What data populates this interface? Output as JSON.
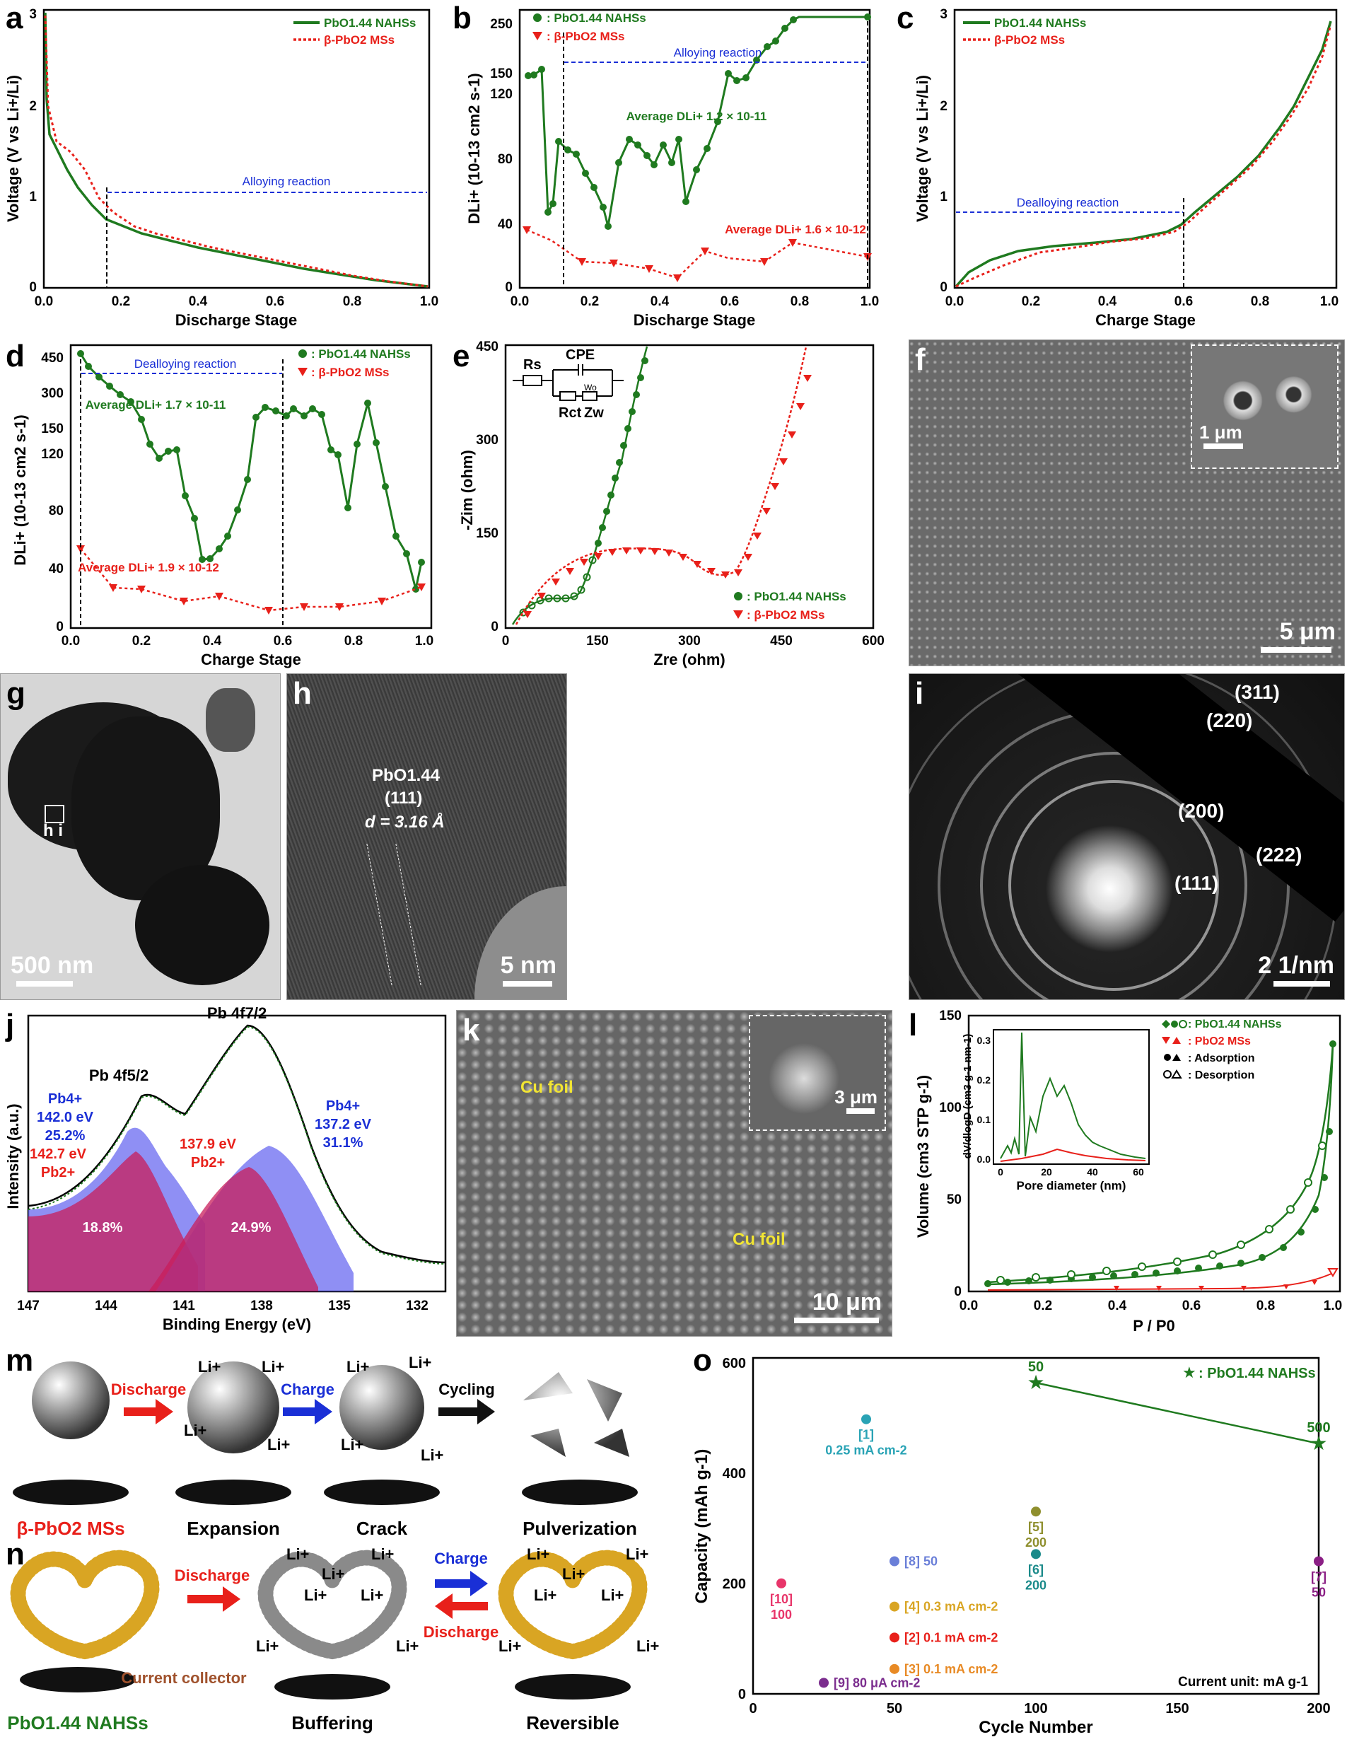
{
  "labels": {
    "a": "a",
    "b": "b",
    "c": "c",
    "d": "d",
    "e": "e",
    "f": "f",
    "g": "g",
    "h": "h",
    "i": "i",
    "j": "j",
    "k": "k",
    "l": "l",
    "m": "m",
    "n": "n",
    "o": "o"
  },
  "legend": {
    "nahss": "PbO1.44 NAHSs",
    "ms": "β-PbO2 MSs",
    "nahss_colon": ": PbO1.44 NAHSs",
    "ms_colon": ": β-PbO2 MSs"
  },
  "colors": {
    "green": "#1f7a1f",
    "red": "#e8201a",
    "blue": "#1a2fd6",
    "purple": "#6a6af0"
  },
  "panel_a": {
    "xlabel": "Discharge Stage",
    "ylabel": "Voltage (V vs Li+/Li)",
    "annotation": "Alloying reaction",
    "xticks": [
      "0.0",
      "0.2",
      "0.4",
      "0.6",
      "0.8",
      "1.0"
    ],
    "yticks": [
      "0",
      "1",
      "2",
      "3"
    ]
  },
  "panel_b": {
    "xlabel": "Discharge Stage",
    "ylabel": "DLi+ (10-13 cm2 s-1)",
    "annotation": "Alloying reaction",
    "avg_green": "Average DLi+ 1.2 × 10-11",
    "avg_red": "Average DLi+ 1.6 × 10-12",
    "xticks": [
      "0.0",
      "0.2",
      "0.4",
      "0.6",
      "0.8",
      "1.0"
    ],
    "yticks": [
      "0",
      "40",
      "80",
      "120",
      "150",
      "250"
    ]
  },
  "panel_c": {
    "xlabel": "Charge Stage",
    "ylabel": "Voltage (V vs Li+/Li)",
    "annotation": "Dealloying reaction",
    "xticks": [
      "0.0",
      "0.2",
      "0.4",
      "0.6",
      "0.8",
      "1.0"
    ],
    "yticks": [
      "0",
      "1",
      "2",
      "3"
    ]
  },
  "panel_d": {
    "xlabel": "Charge Stage",
    "ylabel": "DLi+ (10-13 cm2 s-1)",
    "annotation": "Dealloying reaction",
    "avg_green": "Average DLi+ 1.7 × 10-11",
    "avg_red": "Average DLi+ 1.9 × 10-12",
    "xticks": [
      "0.0",
      "0.2",
      "0.4",
      "0.6",
      "0.8",
      "1.0"
    ],
    "yticks": [
      "0",
      "40",
      "80",
      "120",
      "150",
      "300",
      "450"
    ]
  },
  "panel_e": {
    "xlabel": "Zre (ohm)",
    "ylabel": "-Zim (ohm)",
    "circuit": {
      "rs": "Rs",
      "cpe": "CPE",
      "rct": "Rct",
      "zw": "Zw",
      "wo": "Wo"
    },
    "xticks": [
      "0",
      "150",
      "300",
      "450",
      "600"
    ],
    "yticks": [
      "0",
      "150",
      "300",
      "450"
    ]
  },
  "panel_f": {
    "scalebar": "5 μm",
    "inset_scalebar": "1 μm"
  },
  "panel_g": {
    "scalebar": "500 nm",
    "marker": "h i"
  },
  "panel_h": {
    "scalebar": "5 nm",
    "phase": "PbO1.44",
    "plane": "(111)",
    "dspacing": "d = 3.16 Å"
  },
  "panel_i": {
    "scalebar": "2 1/nm",
    "rings": [
      "(311)",
      "(220)",
      "(200)",
      "(222)",
      "(111)"
    ]
  },
  "panel_j": {
    "xlabel": "Binding Energy (eV)",
    "ylabel": "Intensity (a.u.)",
    "peak1": "Pb 4f5/2",
    "peak2": "Pb 4f7/2",
    "a1": "Pb4+",
    "a1v": "142.0 eV",
    "a1p": "25.2%",
    "a2": "Pb4+",
    "a2v": "137.2 eV",
    "a2p": "31.1%",
    "a3v": "142.7 eV",
    "a3": "Pb2+",
    "a4v": "137.9 eV",
    "a4": "Pb2+",
    "f1": "18.8%",
    "f2": "24.9%",
    "xticks": [
      "147",
      "144",
      "141",
      "138",
      "135",
      "132"
    ]
  },
  "panel_k": {
    "scalebar": "10 μm",
    "inset_scalebar": "3 μm",
    "cu1": "Cu foil",
    "cu2": "Cu foil"
  },
  "panel_l": {
    "xlabel": "P / P0",
    "ylabel": "Volume (cm3 STP g-1)",
    "legend": [
      ": PbO1.44 NAHSs",
      ": PbO2 MSs",
      ": Adsorption",
      ": Desorption"
    ],
    "inset_xlabel": "Pore diameter (nm)",
    "inset_ylabel": "dV/dlogD (cm3 g-1 nm-1)",
    "xticks": [
      "0.0",
      "0.2",
      "0.4",
      "0.6",
      "0.8",
      "1.0"
    ],
    "yticks": [
      "0",
      "50",
      "100",
      "150"
    ],
    "inset_xticks": [
      "0",
      "20",
      "40",
      "60"
    ],
    "inset_yticks": [
      "0.0",
      "0.1",
      "0.2",
      "0.3"
    ]
  },
  "panel_m": {
    "discharge": "Discharge",
    "charge": "Charge",
    "cycling": "Cycling",
    "li": "Li+",
    "labels": [
      "β-PbO2 MSs",
      "Expansion",
      "Crack",
      "Pulverization"
    ]
  },
  "panel_n": {
    "discharge": "Discharge",
    "charge": "Charge",
    "discharge2": "Discharge",
    "li": "Li+",
    "collector": "Current collector",
    "labels": [
      "PbO1.44 NAHSs",
      "Buffering",
      "Reversible"
    ]
  },
  "panel_o": {
    "xlabel": "Cycle Number",
    "ylabel": "Capacity (mAh g-1)",
    "legend": ": PbO1.44 NAHSs",
    "unit": "Current unit: mA g-1",
    "xticks": [
      "0",
      "50",
      "100",
      "150",
      "200"
    ],
    "yticks": [
      "0",
      "200",
      "400",
      "600"
    ],
    "points": [
      {
        "ref": "[1]",
        "note": "0.25 mA cm-2",
        "x": 40,
        "y": 497,
        "color": "#29a3b5"
      },
      {
        "ref": "[2]",
        "note": "0.1 mA cm-2",
        "x": 50,
        "y": 102,
        "color": "#e8201a"
      },
      {
        "ref": "[3]",
        "note": "0.1 mA cm-2",
        "x": 50,
        "y": 45,
        "color": "#e88a25"
      },
      {
        "ref": "[4]",
        "note": "0.3 mA cm-2",
        "x": 50,
        "y": 158,
        "color": "#d9a523"
      },
      {
        "ref": "[5]",
        "note": "200",
        "x": 100,
        "y": 330,
        "color": "#8f8f2e"
      },
      {
        "ref": "[6]",
        "note": "200",
        "x": 100,
        "y": 253,
        "color": "#1a8a8a"
      },
      {
        "ref": "[7]",
        "note": "50",
        "x": 200,
        "y": 240,
        "color": "#8b1f85"
      },
      {
        "ref": "[8]",
        "note": "50",
        "x": 50,
        "y": 240,
        "color": "#6a7fd8"
      },
      {
        "ref": "[9]",
        "note": "80 μA cm-2",
        "x": 25,
        "y": 20,
        "color": "#7b2d8e"
      },
      {
        "ref": "[10]",
        "note": "100",
        "x": 10,
        "y": 200,
        "color": "#e8356a"
      }
    ],
    "star_points": [
      {
        "label": "50",
        "x": 100,
        "y": 563
      },
      {
        "label": "500",
        "x": 200,
        "y": 453
      }
    ]
  }
}
